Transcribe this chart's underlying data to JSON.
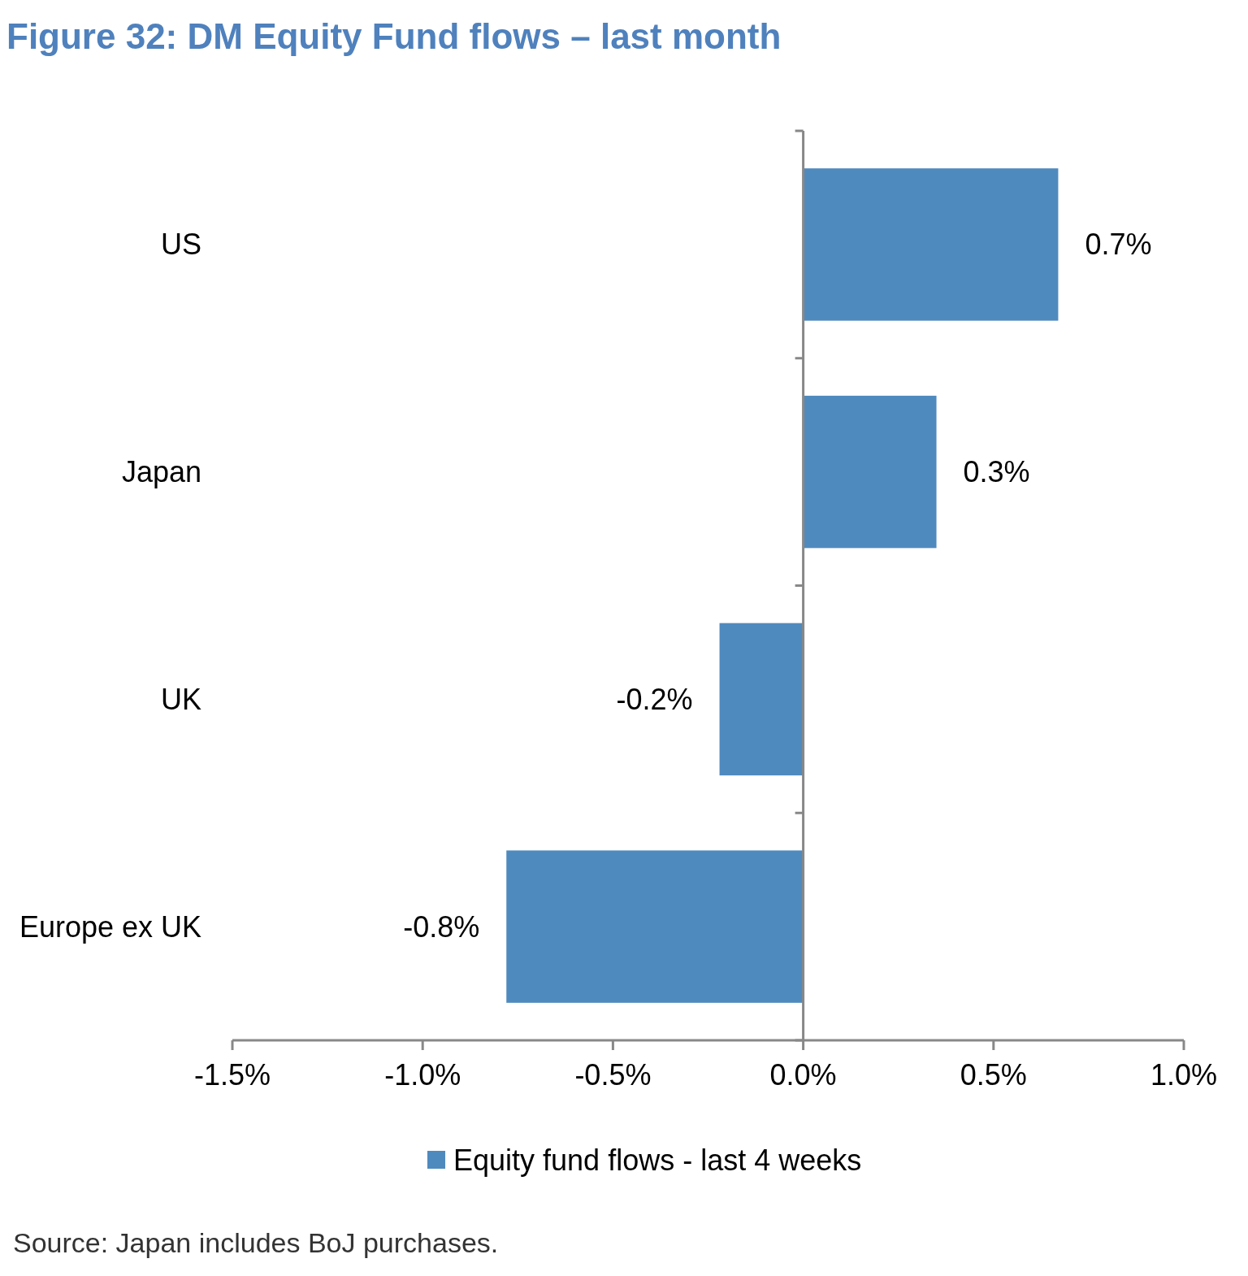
{
  "chart_data": {
    "type": "bar",
    "orientation": "horizontal",
    "title": "Figure 32: DM Equity Fund flows – last month",
    "categories": [
      "US",
      "Japan",
      "UK",
      "Europe ex UK"
    ],
    "series": [
      {
        "name": "Equity fund flows - last 4 weeks",
        "color": "#4f8abe",
        "values": [
          0.67,
          0.35,
          -0.22,
          -0.78
        ],
        "value_labels": [
          "0.7%",
          "0.3%",
          "-0.2%",
          "-0.8%"
        ]
      }
    ],
    "xlim": [
      -1.5,
      1.0
    ],
    "xticks": [
      {
        "value": -1.5,
        "label": "-1.5%"
      },
      {
        "value": -1.0,
        "label": "-1.0%"
      },
      {
        "value": -0.5,
        "label": "-0.5%"
      },
      {
        "value": 0,
        "label": "0.0%"
      },
      {
        "value": 0.5,
        "label": "0.5%"
      },
      {
        "value": 1.0,
        "label": "1.0%"
      }
    ],
    "legend": "bottom",
    "annotations": [
      "Source: Japan includes BoJ purchases."
    ]
  }
}
